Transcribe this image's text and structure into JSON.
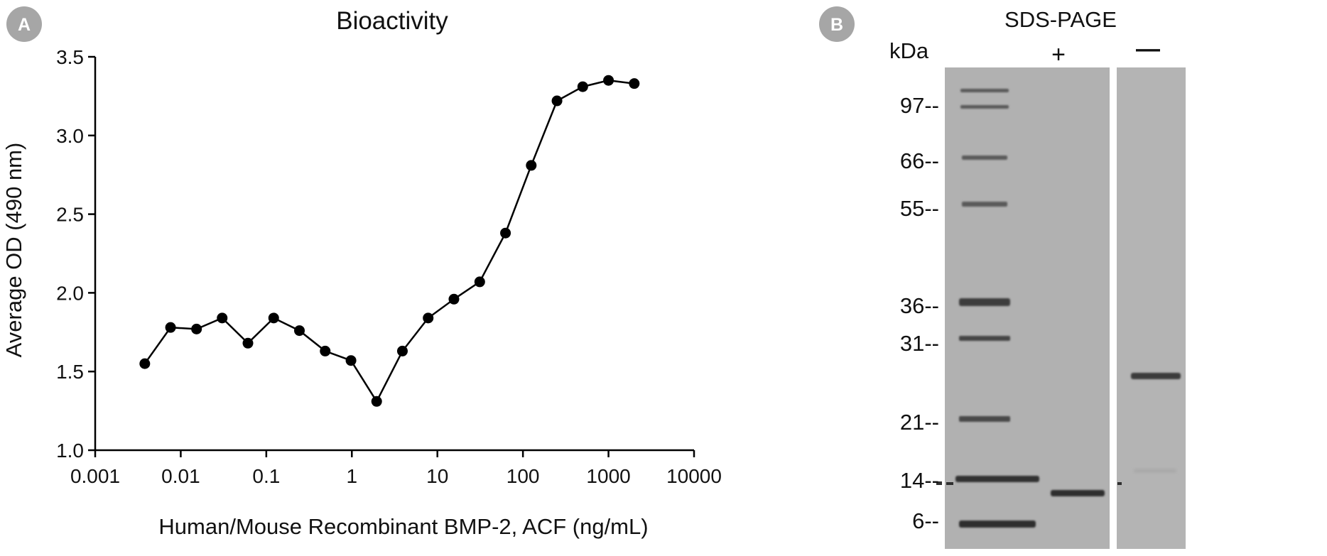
{
  "panels": [
    {
      "badge": "A",
      "title": "Bioactivity"
    },
    {
      "badge": "B",
      "title": "SDS-PAGE"
    }
  ],
  "chart_data": [
    {
      "type": "line",
      "title": "Bioactivity",
      "xlabel": "Human/Mouse Recombinant BMP-2, ACF (ng/mL)",
      "ylabel": "Average OD (490 nm)",
      "x_scale": "log",
      "xlim": [
        0.001,
        10000
      ],
      "ylim": [
        1.0,
        3.5
      ],
      "x_ticks": [
        0.001,
        0.01,
        0.1,
        1,
        10,
        100,
        1000,
        10000
      ],
      "x_tick_labels": [
        "0.001",
        "0.01",
        "0.1",
        "1",
        "10",
        "100",
        "1000",
        "10000"
      ],
      "y_ticks": [
        1.0,
        1.5,
        2.0,
        2.5,
        3.0,
        3.5
      ],
      "y_tick_labels": [
        "1.0",
        "1.5",
        "2.0",
        "2.5",
        "3.0",
        "3.5"
      ],
      "grid": false,
      "marker": "circle",
      "line_color": "#000000",
      "series": [
        {
          "x": [
            0.0038,
            0.0076,
            0.0153,
            0.0305,
            0.061,
            0.122,
            0.244,
            0.488,
            0.977,
            1.95,
            3.9,
            7.8,
            15.6,
            31.25,
            62.5,
            125,
            250,
            500,
            1000,
            2000
          ],
          "y": [
            1.55,
            1.78,
            1.77,
            1.84,
            1.68,
            1.84,
            1.76,
            1.63,
            1.57,
            1.31,
            1.63,
            1.84,
            1.96,
            2.07,
            2.38,
            2.81,
            3.22,
            3.31,
            3.35,
            3.33
          ]
        }
      ]
    },
    {
      "type": "gel",
      "title": "SDS-PAGE",
      "unit_label": "kDa",
      "lane_labels": [
        "+",
        "—"
      ],
      "markers": [
        {
          "kda": 97,
          "label": "97--"
        },
        {
          "kda": 66,
          "label": "66--"
        },
        {
          "kda": 55,
          "label": "55--"
        },
        {
          "kda": 36,
          "label": "36--"
        },
        {
          "kda": 31,
          "label": "31--"
        },
        {
          "kda": 21,
          "label": "21--"
        },
        {
          "kda": 14,
          "label": "14--"
        },
        {
          "kda": 6,
          "label": "6--"
        }
      ]
    }
  ]
}
